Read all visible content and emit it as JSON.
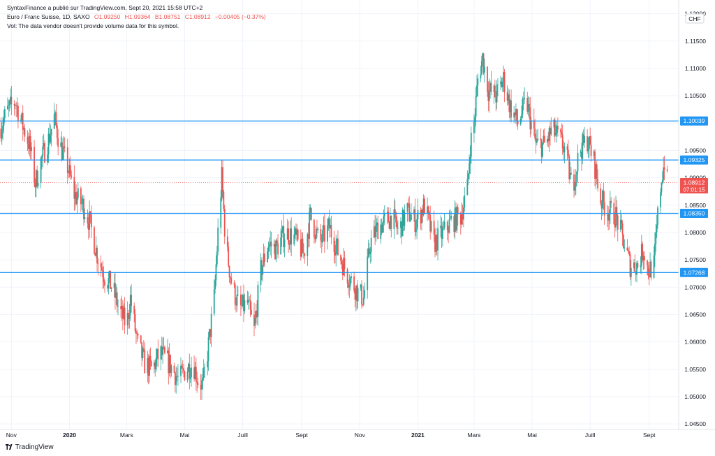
{
  "header": {
    "line1": {
      "publisher": "SyntaxFinance a  publié sur TradingView.com, Sept 20, 2021 15:58 UTC+2",
      "symbol": "Euro / Franc Suisse, 1D, SAXO",
      "o": "O1.09250",
      "h": "H1.09364",
      "b": "B1.08751",
      "c": "C1.08912",
      "chg": "−0.00405 (−0.37%)"
    },
    "line2": "Vol: The data vendor doesn't provide volume data for this symbol."
  },
  "currency_badge": "CHF",
  "brand": "TradingView",
  "colors": {
    "up": "#26a69a",
    "down": "#ef5350",
    "level_line": "#2196f3",
    "price_badge": "#ef5350",
    "grid": "#f0f3fa",
    "axis_text": "#131722",
    "last_price_line": "#ef5350"
  },
  "chart_data": {
    "type": "candlestick",
    "title": "Euro / Franc Suisse, 1D, SAXO",
    "x_tick_labels": [
      "Nov",
      "2020",
      "Mars",
      "Mai",
      "Juill",
      "Sept",
      "Nov",
      "2021",
      "Mars",
      "Mai",
      "Juill",
      "Sept"
    ],
    "x_range": [
      "2019-10-20",
      "2021-10-02"
    ],
    "y_range": [
      1.044,
      1.1225
    ],
    "y_tick_labels": [
      "1.12000",
      "1.11500",
      "1.11000",
      "1.10500",
      "1.10000",
      "1.09500",
      "1.09000",
      "1.08500",
      "1.08000",
      "1.07500",
      "1.07000",
      "1.06500",
      "1.06000",
      "1.05500",
      "1.05000",
      "1.04500"
    ],
    "y_ticks": [
      1.12,
      1.115,
      1.11,
      1.105,
      1.1,
      1.095,
      1.09,
      1.085,
      1.08,
      1.075,
      1.07,
      1.065,
      1.06,
      1.055,
      1.05,
      1.045
    ],
    "horizontal_levels": [
      {
        "value": 1.10039,
        "label": "1.10039"
      },
      {
        "value": 1.09325,
        "label": "1.09325"
      },
      {
        "value": 1.0835,
        "label": "1.08350"
      },
      {
        "value": 1.07268,
        "label": "1.07268"
      }
    ],
    "last_price": {
      "value": 1.08912,
      "label": "1.08912",
      "countdown": "07:01:15"
    },
    "close_path": [
      [
        "2019-10-20",
        1.099
      ],
      [
        "2019-10-27",
        1.102
      ],
      [
        "2019-11-05",
        1.104
      ],
      [
        "2019-11-12",
        1.1
      ],
      [
        "2019-11-20",
        1.096
      ],
      [
        "2019-11-26",
        1.089
      ],
      [
        "2019-12-02",
        1.093
      ],
      [
        "2019-12-10",
        1.097
      ],
      [
        "2019-12-16",
        1.101
      ],
      [
        "2019-12-22",
        1.096
      ],
      [
        "2019-12-30",
        1.092
      ],
      [
        "2020-01-06",
        1.087
      ],
      [
        "2020-01-15",
        1.085
      ],
      [
        "2020-01-22",
        1.082
      ],
      [
        "2020-01-30",
        1.076
      ],
      [
        "2020-02-07",
        1.072
      ],
      [
        "2020-02-15",
        1.07
      ],
      [
        "2020-02-22",
        1.066
      ],
      [
        "2020-03-01",
        1.063
      ],
      [
        "2020-03-05",
        1.068
      ],
      [
        "2020-03-12",
        1.06
      ],
      [
        "2020-03-20",
        1.056
      ],
      [
        "2020-03-28",
        1.055
      ],
      [
        "2020-04-05",
        1.058
      ],
      [
        "2020-04-15",
        1.056
      ],
      [
        "2020-04-25",
        1.053
      ],
      [
        "2020-05-02",
        1.055
      ],
      [
        "2020-05-10",
        1.056
      ],
      [
        "2020-05-15",
        1.053
      ],
      [
        "2020-05-20",
        1.052
      ],
      [
        "2020-05-25",
        1.058
      ],
      [
        "2020-06-01",
        1.068
      ],
      [
        "2020-06-05",
        1.08
      ],
      [
        "2020-06-09",
        1.09
      ],
      [
        "2020-06-13",
        1.078
      ],
      [
        "2020-06-20",
        1.07
      ],
      [
        "2020-06-28",
        1.066
      ],
      [
        "2020-07-06",
        1.067
      ],
      [
        "2020-07-13",
        1.062
      ],
      [
        "2020-07-20",
        1.073
      ],
      [
        "2020-07-28",
        1.078
      ],
      [
        "2020-08-05",
        1.077
      ],
      [
        "2020-08-15",
        1.08
      ],
      [
        "2020-08-25",
        1.079
      ],
      [
        "2020-09-03",
        1.076
      ],
      [
        "2020-09-10",
        1.083
      ],
      [
        "2020-09-20",
        1.078
      ],
      [
        "2020-09-30",
        1.081
      ],
      [
        "2020-10-10",
        1.076
      ],
      [
        "2020-10-20",
        1.072
      ],
      [
        "2020-10-30",
        1.069
      ],
      [
        "2020-11-05",
        1.068
      ],
      [
        "2020-11-12",
        1.078
      ],
      [
        "2020-11-20",
        1.081
      ],
      [
        "2020-11-28",
        1.082
      ],
      [
        "2020-12-05",
        1.083
      ],
      [
        "2020-12-12",
        1.08
      ],
      [
        "2020-12-20",
        1.084
      ],
      [
        "2020-12-30",
        1.082
      ],
      [
        "2021-01-08",
        1.085
      ],
      [
        "2021-01-18",
        1.078
      ],
      [
        "2021-01-28",
        1.08
      ],
      [
        "2021-02-05",
        1.082
      ],
      [
        "2021-02-15",
        1.083
      ],
      [
        "2021-02-22",
        1.088
      ],
      [
        "2021-02-25",
        1.096
      ],
      [
        "2021-03-01",
        1.1
      ],
      [
        "2021-03-05",
        1.108
      ],
      [
        "2021-03-10",
        1.112
      ],
      [
        "2021-03-16",
        1.106
      ],
      [
        "2021-03-24",
        1.105
      ],
      [
        "2021-04-01",
        1.108
      ],
      [
        "2021-04-08",
        1.103
      ],
      [
        "2021-04-16",
        1.1
      ],
      [
        "2021-04-25",
        1.104
      ],
      [
        "2021-05-05",
        1.096
      ],
      [
        "2021-05-15",
        1.096
      ],
      [
        "2021-05-22",
        1.099
      ],
      [
        "2021-05-30",
        1.097
      ],
      [
        "2021-06-05",
        1.095
      ],
      [
        "2021-06-12",
        1.088
      ],
      [
        "2021-06-20",
        1.095
      ],
      [
        "2021-06-28",
        1.097
      ],
      [
        "2021-07-05",
        1.093
      ],
      [
        "2021-07-12",
        1.086
      ],
      [
        "2021-07-20",
        1.084
      ],
      [
        "2021-07-28",
        1.083
      ],
      [
        "2021-08-04",
        1.079
      ],
      [
        "2021-08-12",
        1.074
      ],
      [
        "2021-08-20",
        1.074
      ],
      [
        "2021-08-26",
        1.077
      ],
      [
        "2021-08-31",
        1.073
      ],
      [
        "2021-09-06",
        1.074
      ],
      [
        "2021-09-10",
        1.083
      ],
      [
        "2021-09-14",
        1.09
      ],
      [
        "2021-09-17",
        1.093
      ],
      [
        "2021-09-20",
        1.0891
      ]
    ]
  }
}
